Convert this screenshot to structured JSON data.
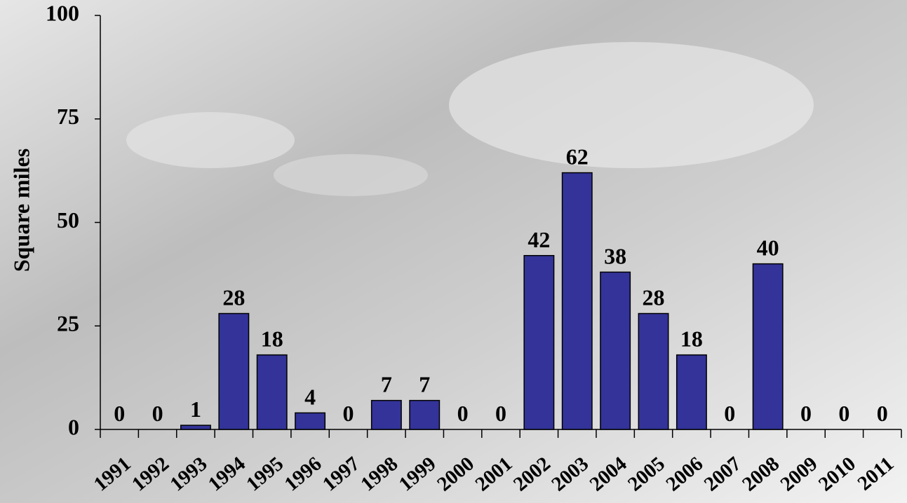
{
  "chart_data": {
    "type": "bar",
    "y_label": "Square miles",
    "categories": [
      "1991",
      "1992",
      "1993",
      "1994",
      "1995",
      "1996",
      "1997",
      "1998",
      "1999",
      "2000",
      "2001",
      "2002",
      "2003",
      "2004",
      "2005",
      "2006",
      "2007",
      "2008",
      "2009",
      "2010",
      "2011"
    ],
    "values": [
      0,
      0,
      1,
      28,
      18,
      4,
      0,
      7,
      7,
      0,
      0,
      42,
      62,
      38,
      28,
      18,
      0,
      40,
      0,
      0,
      0
    ],
    "color": "#333399",
    "ylim": [
      0,
      100
    ],
    "yticks": [
      0,
      25,
      50,
      75,
      100
    ],
    "grid": false
  }
}
